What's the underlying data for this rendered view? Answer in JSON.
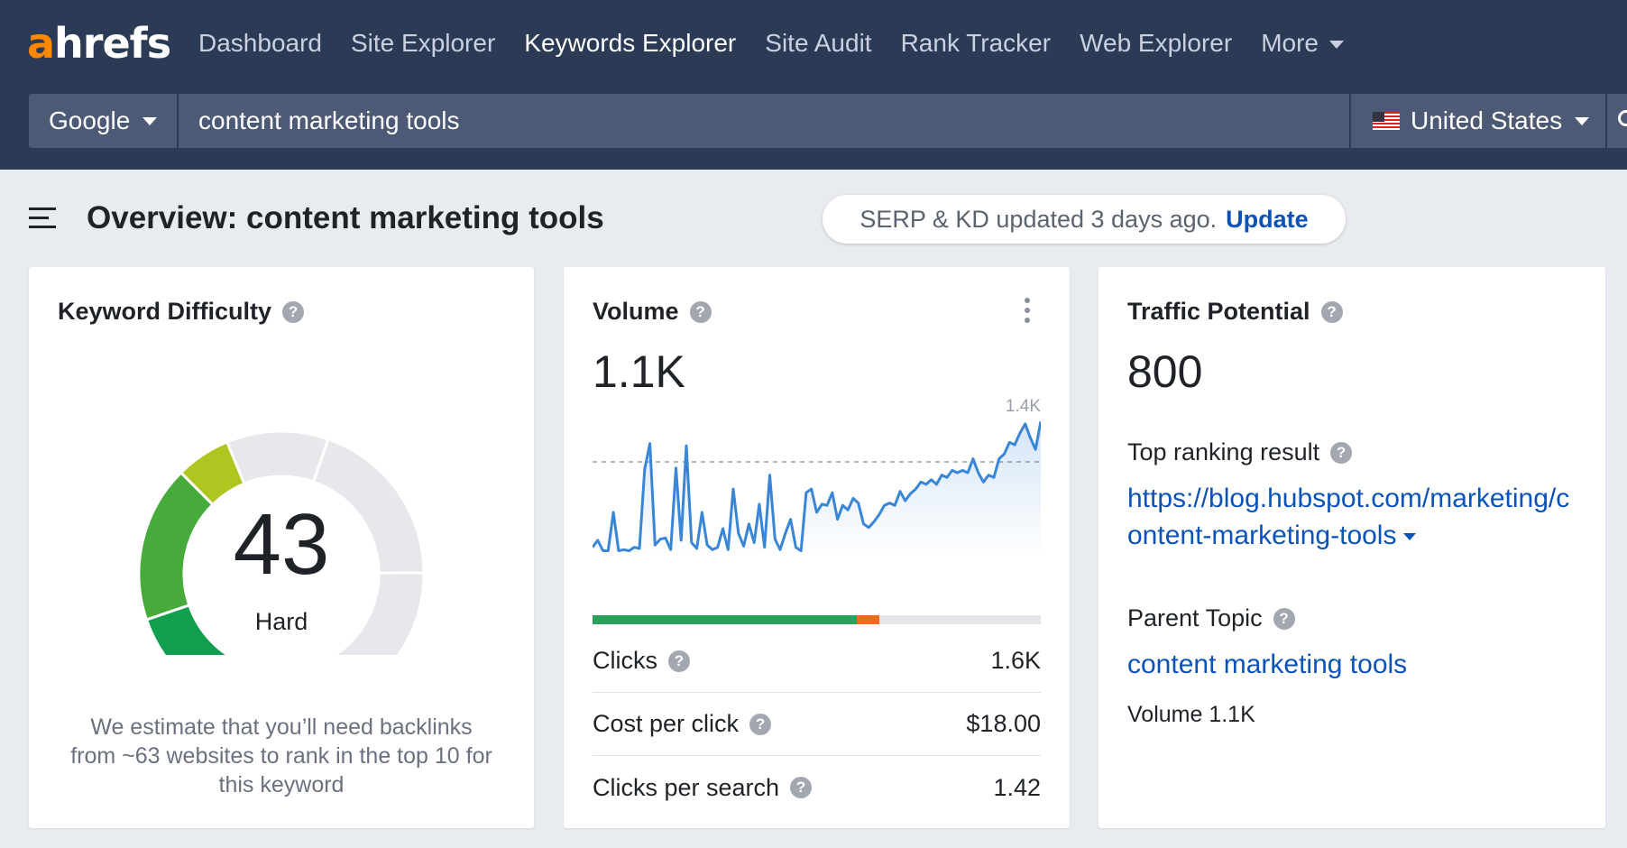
{
  "brand": {
    "logo_a": "a",
    "logo_rest": "hrefs",
    "accent": "#ff8800"
  },
  "nav": {
    "items": [
      "Dashboard",
      "Site Explorer",
      "Keywords Explorer",
      "Site Audit",
      "Rank Tracker",
      "Web Explorer"
    ],
    "active": "Keywords Explorer",
    "more_label": "More"
  },
  "search": {
    "engine": "Google",
    "query": "content marketing tools",
    "country": "United States"
  },
  "overview": {
    "title": "Overview: content marketing tools",
    "updated_text": "SERP & KD updated 3 days ago.",
    "update_link": "Update"
  },
  "kd": {
    "title": "Keyword Difficulty",
    "value": "43",
    "value_fraction": 0.43,
    "label": "Hard",
    "description": "We estimate that you’ll need backlinks from ~63 websites to rank in the top 10 for this keyword"
  },
  "volume": {
    "title": "Volume",
    "value": "1.1K",
    "chart_max_label": "1.4K",
    "clicks_organic_fraction": 0.59,
    "clicks_paid_fraction": 0.05,
    "metrics": [
      {
        "name": "Clicks",
        "value": "1.6K"
      },
      {
        "name": "Cost per click",
        "value": "$18.00"
      },
      {
        "name": "Clicks per search",
        "value": "1.42"
      }
    ]
  },
  "traffic": {
    "title": "Traffic Potential",
    "value": "800",
    "top_result_label": "Top ranking result",
    "top_result_url": "https://blog.hubspot.com/marketing/content-marketing-tools",
    "parent_topic_label": "Parent Topic",
    "parent_topic": "content marketing tools",
    "parent_volume": "Volume 1.1K"
  },
  "colors": {
    "nav_bg": "#2b3a55",
    "link": "#0b53b8",
    "kd_green": "#27a048",
    "kd_yellow": "#b6c61a",
    "chart_line": "#3a86d6"
  }
}
